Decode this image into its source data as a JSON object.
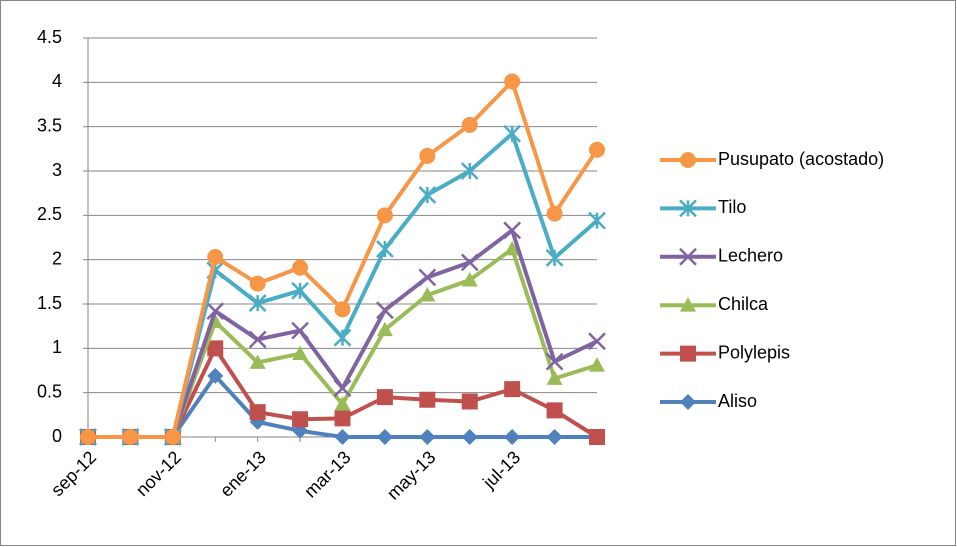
{
  "chart_data": {
    "type": "line",
    "categories": [
      "sep-12",
      null,
      "nov-12",
      null,
      "ene-13",
      null,
      "mar-13",
      null,
      "may-13",
      null,
      "jul-13",
      null,
      null
    ],
    "series": [
      {
        "name": "Pusupato (acostado)",
        "color": "#F79646",
        "marker": "circle",
        "values": [
          0,
          0,
          0,
          2.03,
          1.73,
          1.91,
          1.44,
          2.5,
          3.17,
          3.52,
          4.01,
          2.52,
          3.24
        ]
      },
      {
        "name": "Tilo",
        "color": "#4BACC6",
        "marker": "star",
        "values": [
          0,
          0,
          0,
          1.88,
          1.51,
          1.65,
          1.12,
          2.12,
          2.73,
          3.0,
          3.42,
          2.02,
          2.44
        ]
      },
      {
        "name": "Lechero",
        "color": "#8064A2",
        "marker": "x",
        "values": [
          0,
          0,
          0,
          1.42,
          1.1,
          1.2,
          0.55,
          1.43,
          1.8,
          1.97,
          2.33,
          0.85,
          1.08
        ]
      },
      {
        "name": "Chilca",
        "color": "#9BBB59",
        "marker": "triangle",
        "values": [
          0,
          0,
          0,
          1.3,
          0.84,
          0.94,
          0.37,
          1.21,
          1.6,
          1.77,
          2.12,
          0.66,
          0.81
        ]
      },
      {
        "name": "Polylepis",
        "color": "#C0504D",
        "marker": "square",
        "values": [
          0,
          0,
          0,
          1.0,
          0.28,
          0.2,
          0.21,
          0.45,
          0.42,
          0.4,
          0.54,
          0.3,
          0.0
        ]
      },
      {
        "name": "Aliso",
        "color": "#4F81BD",
        "marker": "diamond",
        "values": [
          0,
          0,
          0,
          0.69,
          0.17,
          0.07,
          0,
          0,
          0,
          0,
          0,
          0,
          0
        ]
      }
    ],
    "ylim": [
      0,
      4.5
    ],
    "yticks": [
      0,
      0.5,
      1,
      1.5,
      2,
      2.5,
      3,
      3.5,
      4,
      4.5
    ],
    "grid": true,
    "legend": "right"
  }
}
